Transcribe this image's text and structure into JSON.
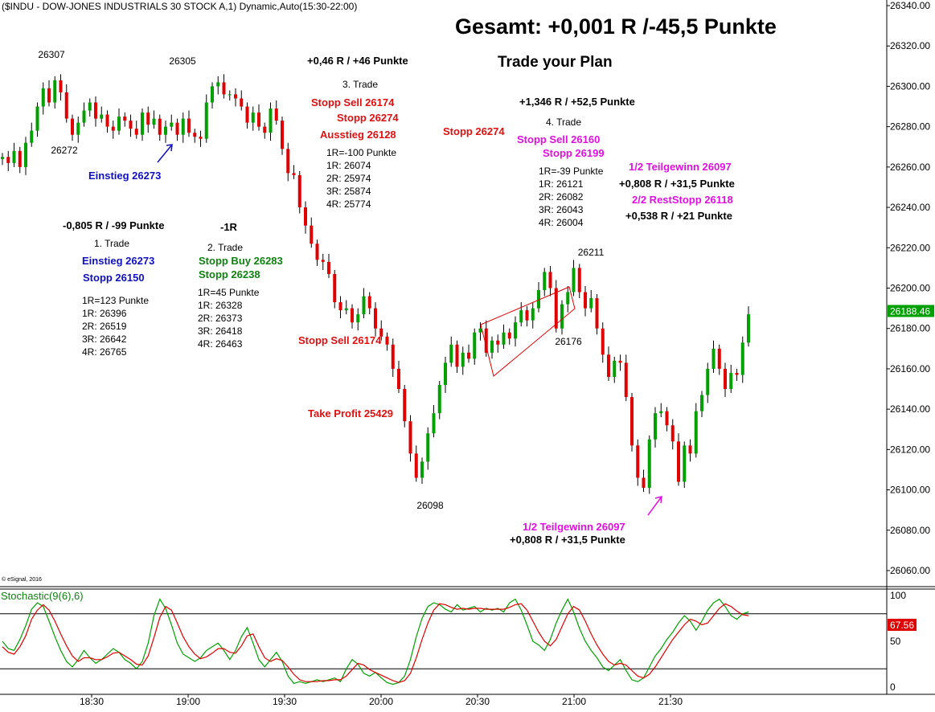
{
  "header": {
    "title": "($INDU - DOW-JONES INDUSTRIALS 30 STOCK A,1) Dynamic,Auto(15:30-22:00)",
    "summary": "Gesamt: +0,001 R /-45,5 Punkte",
    "motto": "Trade your Plan",
    "copyright": "© eSignal, 2016"
  },
  "colors": {
    "up": "#00a000",
    "down": "#e00000",
    "blue": "#1010c0",
    "green": "#108010",
    "red": "#e01010",
    "magenta": "#e010e0"
  },
  "chart_data": {
    "type": "candlestick",
    "y_ticks": [
      "26340.00",
      "26320.00",
      "26300.00",
      "26280.00",
      "26260.00",
      "26240.00",
      "26220.00",
      "26200.00",
      "26180.00",
      "26160.00",
      "26140.00",
      "26120.00",
      "26100.00",
      "26080.00",
      "26060.00"
    ],
    "ylim": [
      26051,
      26341
    ],
    "x_ticks": [
      "18:30",
      "19:00",
      "19:30",
      "20:00",
      "20:30",
      "21:00",
      "21:30"
    ],
    "last_price": "26188.46",
    "price_closes": [
      26265,
      26262,
      26268,
      26260,
      26272,
      26278,
      26290,
      26299,
      26292,
      26303,
      26297,
      26284,
      26276,
      26282,
      26288,
      26292,
      26284,
      26286,
      26280,
      26278,
      26285,
      26283,
      26279,
      26276,
      26287,
      26281,
      26284,
      26276,
      26280,
      26282,
      26276,
      26284,
      26277,
      26275,
      26274,
      26292,
      26300,
      26302,
      26296,
      26296,
      26294,
      26290,
      26282,
      26287,
      26280,
      26277,
      26289,
      26283,
      26269,
      26257,
      26256,
      26240,
      26231,
      26222,
      26214,
      26213,
      26207,
      26193,
      26189,
      26190,
      26183,
      26187,
      26196,
      26190,
      26180,
      26176,
      26172,
      26160,
      26150,
      26134,
      26118,
      26106,
      26114,
      26128,
      26138,
      26152,
      26163,
      26172,
      26161,
      26168,
      26165,
      26178,
      26180,
      26168,
      26174,
      26172,
      26178,
      26175,
      26183,
      26189,
      26184,
      26190,
      26199,
      26208,
      26200,
      26180,
      26192,
      26198,
      26210,
      26198,
      26190,
      26195,
      26180,
      26167,
      26156,
      26164,
      26163,
      26146,
      26122,
      26106,
      26101,
      26125,
      26138,
      26139,
      26132,
      26124,
      26104,
      26122,
      26118,
      26139,
      26147,
      26160,
      26170,
      26160,
      26150,
      26158,
      26157,
      26173,
      26187
    ],
    "annotated_values": {
      "high_left": "26307",
      "low_left": "26272",
      "high_mid": "26305",
      "low_first": "26098",
      "high_second": "26211",
      "low_second": "26176"
    },
    "indicator": {
      "name": "Stochastic(9(6),6)",
      "last_value": "67.56",
      "y_ticks": [
        "100",
        "50",
        "0"
      ],
      "levels": [
        80,
        20
      ],
      "k": [
        50,
        42,
        40,
        52,
        67,
        85,
        92,
        88,
        72,
        55,
        40,
        28,
        22,
        30,
        40,
        32,
        26,
        30,
        36,
        42,
        38,
        30,
        26,
        20,
        28,
        48,
        78,
        96,
        86,
        68,
        48,
        36,
        32,
        28,
        32,
        40,
        44,
        48,
        40,
        30,
        40,
        55,
        65,
        48,
        30,
        22,
        30,
        38,
        28,
        12,
        4,
        6,
        4,
        6,
        8,
        6,
        8,
        10,
        6,
        20,
        30,
        25,
        15,
        12,
        16,
        10,
        5,
        3,
        5,
        12,
        30,
        55,
        75,
        88,
        92,
        90,
        85,
        82,
        90,
        84,
        86,
        88,
        82,
        86,
        84,
        86,
        82,
        92,
        96,
        84,
        68,
        50,
        46,
        40,
        52,
        70,
        84,
        96,
        82,
        64,
        50,
        40,
        32,
        22,
        18,
        24,
        30,
        18,
        8,
        6,
        10,
        22,
        34,
        42,
        52,
        60,
        70,
        78,
        72,
        62,
        72,
        84,
        92,
        96,
        88,
        78,
        74,
        80,
        82
      ],
      "d": [
        44,
        38,
        36,
        44,
        56,
        74,
        84,
        90,
        84,
        72,
        58,
        45,
        34,
        28,
        32,
        32,
        30,
        30,
        33,
        37,
        38,
        34,
        30,
        25,
        24,
        34,
        54,
        76,
        88,
        84,
        70,
        55,
        44,
        36,
        31,
        33,
        37,
        42,
        42,
        38,
        37,
        45,
        56,
        58,
        44,
        32,
        28,
        31,
        29,
        22,
        14,
        8,
        6,
        6,
        6,
        7,
        7,
        8,
        8,
        12,
        19,
        26,
        24,
        19,
        16,
        13,
        10,
        7,
        5,
        7,
        15,
        32,
        52,
        70,
        84,
        91,
        90,
        87,
        85,
        86,
        85,
        86,
        86,
        85,
        85,
        85,
        85,
        87,
        90,
        91,
        84,
        72,
        60,
        50,
        45,
        52,
        66,
        80,
        88,
        84,
        72,
        58,
        46,
        36,
        28,
        24,
        26,
        24,
        18,
        12,
        10,
        14,
        22,
        32,
        42,
        52,
        60,
        68,
        74,
        72,
        68,
        70,
        78,
        86,
        91,
        88,
        83,
        79,
        78
      ]
    }
  },
  "annotations": {
    "top_trade_result": "+0,46 R / +46 Punkte",
    "trade3": {
      "title": "3. Trade",
      "stop_sell": "Stopp Sell 26174",
      "stop": "Stopp 26274",
      "exit": "Ausstieg 26128",
      "targets": [
        "1R=-100 Punkte",
        "1R: 26074",
        "2R: 25974",
        "3R: 25874",
        "4R: 25774"
      ]
    },
    "trade4_result": "+1,346 R / +52,5 Punkte",
    "stop_mid": "Stopp 26274",
    "trade4": {
      "title": "4. Trade",
      "stop_sell": "Stopp Sell 26160",
      "stop": "Stopp 26199",
      "targets": [
        "1R=-39 Punkte",
        "1R: 26121",
        "2R: 26082",
        "3R: 26043",
        "4R: 26004"
      ]
    },
    "right_top": {
      "half_gain": "1/2 Teilgewinn 26097",
      "half_result": "+0,808 R / +31,5 Punkte",
      "rest_stop": "2/2 RestStopp 26118",
      "rest_result": "+0,538 R / +21 Punkte"
    },
    "entry_label": "Einstieg 26273",
    "trade1": {
      "result": "-0,805 R / -99 Punkte",
      "title": "1. Trade",
      "entry": "Einstieg 26273",
      "stop": "Stopp 26150",
      "targets": [
        "1R=123 Punkte",
        "1R: 26396",
        "2R: 26519",
        "3R: 26642",
        "4R: 26765"
      ]
    },
    "trade2": {
      "result": "-1R",
      "title": "2. Trade",
      "stop_buy": "Stopp Buy 26283",
      "stop": "Stopp 26238",
      "targets": [
        "1R=45 Punkte",
        "1R: 26328",
        "2R: 26373",
        "3R: 26418",
        "4R: 26463"
      ]
    },
    "stop_sell_mid": "Stopp Sell 26174",
    "take_profit": "Take Profit 25429",
    "bottom_half_gain": "1/2 Teilgewinn 26097",
    "bottom_half_result": "+0,808 R / +31,5 Punkte"
  }
}
